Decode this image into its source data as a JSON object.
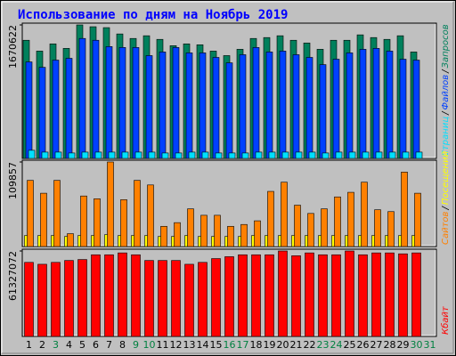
{
  "legend_separator": "/",
  "chart_data": [
    {
      "type": "bar",
      "title": "Использование по дням на Ноябрь 2019",
      "ylim": [
        0,
        1670622
      ],
      "yticks": [
        1670622
      ],
      "series": [
        {
          "name": "Запросов",
          "color": "#00805c",
          "values": [
            1478700,
            1343300,
            1433600,
            1377100,
            1670622,
            1648000,
            1636800,
            1557700,
            1501300,
            1535200,
            1490000,
            1411000,
            1433600,
            1422300,
            1343300,
            1286800,
            1365800,
            1501300,
            1512600,
            1535200,
            1478700,
            1444900,
            1365800,
            1478700,
            1478700,
            1546500,
            1512600,
            1490000,
            1535200,
            1332000,
            null
          ]
        },
        {
          "name": "Файлов",
          "color": "#0040ff",
          "values": [
            1207800,
            1140100,
            1230400,
            1253000,
            1501300,
            1478700,
            1399700,
            1388400,
            1388400,
            1286800,
            1332000,
            1388400,
            1320700,
            1320700,
            1264300,
            1196500,
            1298100,
            1388400,
            1332000,
            1343300,
            1298100,
            1264300,
            1174000,
            1241700,
            1320700,
            1365800,
            1377100,
            1343300,
            1241700,
            1230400,
            null
          ]
        },
        {
          "name": "Страниц",
          "color": "#00e0ff",
          "values": [
            101600,
            79000,
            79000,
            68000,
            79000,
            79000,
            79000,
            79000,
            79000,
            79000,
            68000,
            68000,
            79000,
            79000,
            68000,
            68000,
            68000,
            79000,
            79000,
            79000,
            79000,
            79000,
            68000,
            79000,
            79000,
            79000,
            79000,
            79000,
            79000,
            79000,
            null
          ]
        }
      ]
    },
    {
      "type": "bar",
      "ylim": [
        0,
        109857
      ],
      "yticks": [
        109857
      ],
      "series": [
        {
          "name": "Посещений",
          "color": "#ffff00",
          "values": [
            14300,
            14300,
            14300,
            13100,
            14300,
            14300,
            15500,
            14300,
            14300,
            14300,
            13100,
            13100,
            14300,
            13100,
            13100,
            13100,
            13100,
            14300,
            14300,
            14300,
            14300,
            14300,
            14300,
            14300,
            14300,
            14300,
            14300,
            14300,
            14300,
            14300,
            null
          ]
        },
        {
          "name": "Сайтов",
          "color": "#ff8000",
          "values": [
            85975,
            69258,
            85975,
            16717,
            65675,
            62093,
            109857,
            60899,
            85975,
            80004,
            26270,
            31046,
            48958,
            40599,
            40599,
            26270,
            28658,
            33435,
            71646,
            83587,
            53735,
            42988,
            48958,
            64481,
            70452,
            83587,
            47764,
            45376,
            96723,
            69258,
            null
          ]
        }
      ]
    },
    {
      "type": "bar",
      "ylim": [
        0,
        61327072
      ],
      "yticks": [
        61327072
      ],
      "categories": [
        "1",
        "2",
        "3",
        "4",
        "5",
        "6",
        "7",
        "8",
        "9",
        "10",
        "11",
        "12",
        "13",
        "14",
        "15",
        "16",
        "17",
        "18",
        "19",
        "20",
        "21",
        "22",
        "23",
        "24",
        "25",
        "26",
        "27",
        "28",
        "29",
        "30",
        "31"
      ],
      "category_colors": [
        "#000000",
        "#000000",
        "#008040",
        "#000000",
        "#000000",
        "#000000",
        "#000000",
        "#000000",
        "#008040",
        "#008040",
        "#000000",
        "#000000",
        "#000000",
        "#000000",
        "#000000",
        "#008040",
        "#008040",
        "#000000",
        "#000000",
        "#000000",
        "#000000",
        "#000000",
        "#008040",
        "#008040",
        "#000000",
        "#000000",
        "#000000",
        "#000000",
        "#000000",
        "#008040",
        "#008040"
      ],
      "series": [
        {
          "name": "Кбайт",
          "color": "#ff0000",
          "values": [
            53150000,
            51787300,
            53150000,
            54513000,
            55194400,
            58601400,
            58601400,
            59964300,
            58601400,
            54513000,
            54513000,
            54513000,
            51787300,
            53150000,
            55875800,
            57238600,
            58601400,
            58601400,
            58601400,
            61327072,
            57920000,
            59964300,
            58601400,
            58601400,
            61327072,
            58601400,
            59964300,
            59964300,
            59282800,
            59964300,
            null
          ]
        }
      ]
    }
  ]
}
